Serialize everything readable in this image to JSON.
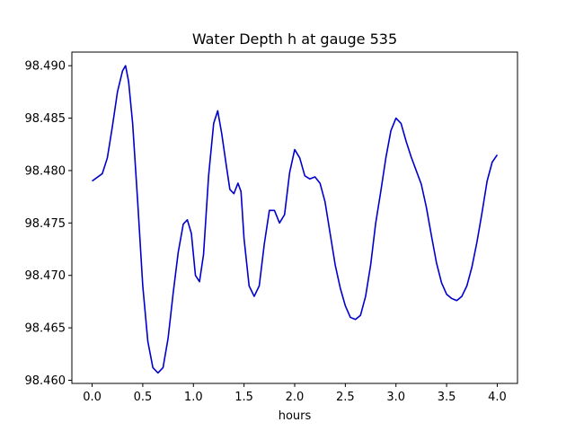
{
  "chart_data": {
    "type": "line",
    "title": "Water Depth h at gauge 535",
    "xlabel": "hours",
    "ylabel": "",
    "xlim": [
      -0.2,
      4.2
    ],
    "ylim": [
      98.4597,
      98.4913
    ],
    "xticks": [
      0.0,
      0.5,
      1.0,
      1.5,
      2.0,
      2.5,
      3.0,
      3.5,
      4.0
    ],
    "xtick_labels": [
      "0.0",
      "0.5",
      "1.0",
      "1.5",
      "2.0",
      "2.5",
      "3.0",
      "3.5",
      "4.0"
    ],
    "yticks": [
      98.46,
      98.465,
      98.47,
      98.475,
      98.48,
      98.485,
      98.49
    ],
    "ytick_labels": [
      "98.460",
      "98.465",
      "98.470",
      "98.475",
      "98.480",
      "98.485",
      "98.490"
    ],
    "grid": false,
    "series": [
      {
        "color": "#0000cc",
        "x": [
          0.0,
          0.1,
          0.15,
          0.2,
          0.25,
          0.3,
          0.33,
          0.36,
          0.4,
          0.45,
          0.5,
          0.55,
          0.6,
          0.65,
          0.7,
          0.75,
          0.8,
          0.85,
          0.9,
          0.94,
          0.98,
          1.02,
          1.06,
          1.1,
          1.15,
          1.2,
          1.24,
          1.28,
          1.32,
          1.36,
          1.4,
          1.44,
          1.47,
          1.5,
          1.55,
          1.6,
          1.65,
          1.7,
          1.75,
          1.8,
          1.85,
          1.9,
          1.95,
          2.0,
          2.05,
          2.1,
          2.15,
          2.2,
          2.25,
          2.3,
          2.35,
          2.4,
          2.45,
          2.5,
          2.55,
          2.6,
          2.65,
          2.7,
          2.75,
          2.8,
          2.85,
          2.9,
          2.95,
          3.0,
          3.05,
          3.1,
          3.15,
          3.2,
          3.25,
          3.3,
          3.35,
          3.4,
          3.45,
          3.5,
          3.55,
          3.6,
          3.65,
          3.7,
          3.75,
          3.8,
          3.85,
          3.9,
          3.95,
          4.0
        ],
        "y": [
          98.479,
          98.4797,
          98.4812,
          98.4842,
          98.4875,
          98.4895,
          98.49,
          98.4885,
          98.4845,
          98.477,
          98.469,
          98.4637,
          98.4612,
          98.4607,
          98.4612,
          98.464,
          98.4683,
          98.4722,
          98.4749,
          98.4753,
          98.474,
          98.47,
          98.4694,
          98.472,
          98.4795,
          98.4845,
          98.4857,
          98.4835,
          98.4808,
          98.4782,
          98.4778,
          98.4788,
          98.478,
          98.4735,
          98.469,
          98.468,
          98.469,
          98.473,
          98.4762,
          98.4762,
          98.475,
          98.4758,
          98.4798,
          98.482,
          98.4812,
          98.4795,
          98.4792,
          98.4794,
          98.4788,
          98.477,
          98.474,
          98.471,
          98.4688,
          98.4671,
          98.466,
          98.4658,
          98.4662,
          98.468,
          98.471,
          98.475,
          98.478,
          98.4812,
          98.4838,
          98.485,
          98.4845,
          98.4828,
          98.4813,
          98.48,
          98.4787,
          98.4765,
          98.4738,
          98.4712,
          98.4693,
          98.4682,
          98.4678,
          98.4676,
          98.468,
          98.469,
          98.4708,
          98.4732,
          98.476,
          98.479,
          98.4808,
          98.4815
        ]
      }
    ]
  }
}
